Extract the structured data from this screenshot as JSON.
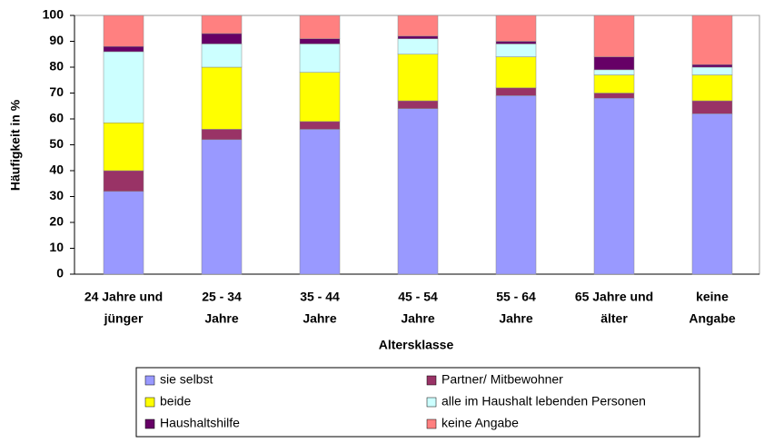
{
  "chart_data": {
    "type": "stacked_bar",
    "y_label": "Häufigkeit in %",
    "x_label": "Altersklasse",
    "categories": [
      [
        "24 Jahre und",
        "jünger"
      ],
      [
        "25 - 34",
        "Jahre"
      ],
      [
        "35 - 44",
        "Jahre"
      ],
      [
        "45 - 54",
        "Jahre"
      ],
      [
        "55 - 64",
        "Jahre"
      ],
      [
        "65 Jahre und",
        "älter"
      ],
      [
        "keine",
        "Angabe"
      ]
    ],
    "series": [
      {
        "name": "sie selbst",
        "color": "#9999ff",
        "values": [
          32,
          52,
          56,
          64,
          69,
          68,
          62
        ]
      },
      {
        "name": "Partner/ Mitbewohner",
        "color": "#993366",
        "values": [
          8,
          4,
          3,
          3,
          3,
          2,
          5
        ]
      },
      {
        "name": "beide",
        "color": "#ffff00",
        "values": [
          18.5,
          24,
          19,
          18,
          12,
          7,
          10
        ]
      },
      {
        "name": "alle im Haushalt lebenden Personen",
        "color": "#ccffff",
        "values": [
          27.5,
          9,
          11,
          6,
          5,
          2,
          3
        ]
      },
      {
        "name": "Haushaltshilfe",
        "color": "#660066",
        "values": [
          2,
          4,
          2,
          1,
          1,
          5,
          1
        ]
      },
      {
        "name": "keine Angabe",
        "color": "#ff8080",
        "values": [
          12,
          7,
          9,
          8,
          10,
          16,
          19
        ]
      }
    ],
    "ylim": [
      0,
      100
    ],
    "yticks": [
      0,
      10,
      20,
      30,
      40,
      50,
      60,
      70,
      80,
      90,
      100
    ]
  }
}
